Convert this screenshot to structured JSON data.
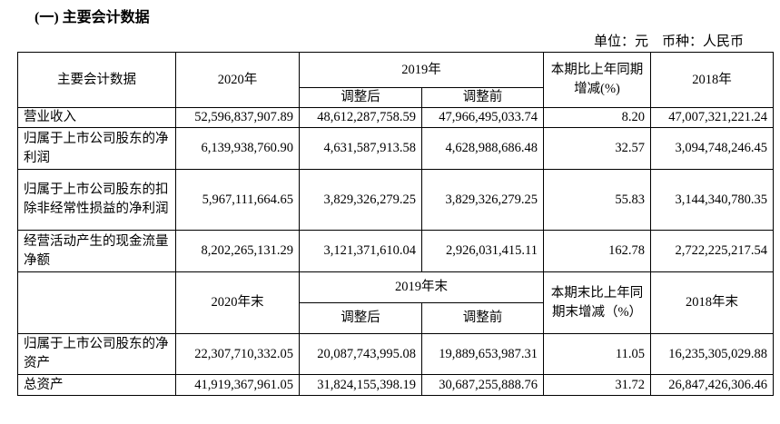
{
  "title": "(一) 主要会计数据",
  "unit": "单位：元　币种：人民币",
  "header1": {
    "item": "主要会计数据",
    "y2020": "2020年",
    "y2019": "2019年",
    "adj_after": "调整后",
    "adj_before": "调整前",
    "change": "本期比上年同期增减(%)",
    "y2018": "2018年"
  },
  "rows1": [
    {
      "label": "营业收入",
      "v2020": "52,596,837,907.89",
      "after": "48,612,287,758.59",
      "before": "47,966,495,033.74",
      "chg": "8.20",
      "v2018": "47,007,321,221.24"
    },
    {
      "label": "归属于上市公司股东的净利润",
      "v2020": "6,139,938,760.90",
      "after": "4,631,587,913.58",
      "before": "4,628,988,686.48",
      "chg": "32.57",
      "v2018": "3,094,748,246.45"
    },
    {
      "label": "归属于上市公司股东的扣除非经常性损益的净利润",
      "v2020": "5,967,111,664.65",
      "after": "3,829,326,279.25",
      "before": "3,829,326,279.25",
      "chg": "55.83",
      "v2018": "3,144,340,780.35"
    },
    {
      "label": "经营活动产生的现金流量净额",
      "v2020": "8,202,265,131.29",
      "after": "3,121,371,610.04",
      "before": "2,926,031,415.11",
      "chg": "162.78",
      "v2018": "2,722,225,217.54"
    }
  ],
  "header2": {
    "y2020": "2020年末",
    "y2019": "2019年末",
    "adj_after": "调整后",
    "adj_before": "调整前",
    "change": "本期末比上年同期末增减（%）",
    "y2018": "2018年末"
  },
  "rows2": [
    {
      "label": "归属于上市公司股东的净资产",
      "v2020": "22,307,710,332.05",
      "after": "20,087,743,995.08",
      "before": "19,889,653,987.31",
      "chg": "11.05",
      "v2018": "16,235,305,029.88"
    },
    {
      "label": "总资产",
      "v2020": "41,919,367,961.05",
      "after": "31,824,155,398.19",
      "before": "30,687,255,888.76",
      "chg": "31.72",
      "v2018": "26,847,426,306.46"
    }
  ]
}
